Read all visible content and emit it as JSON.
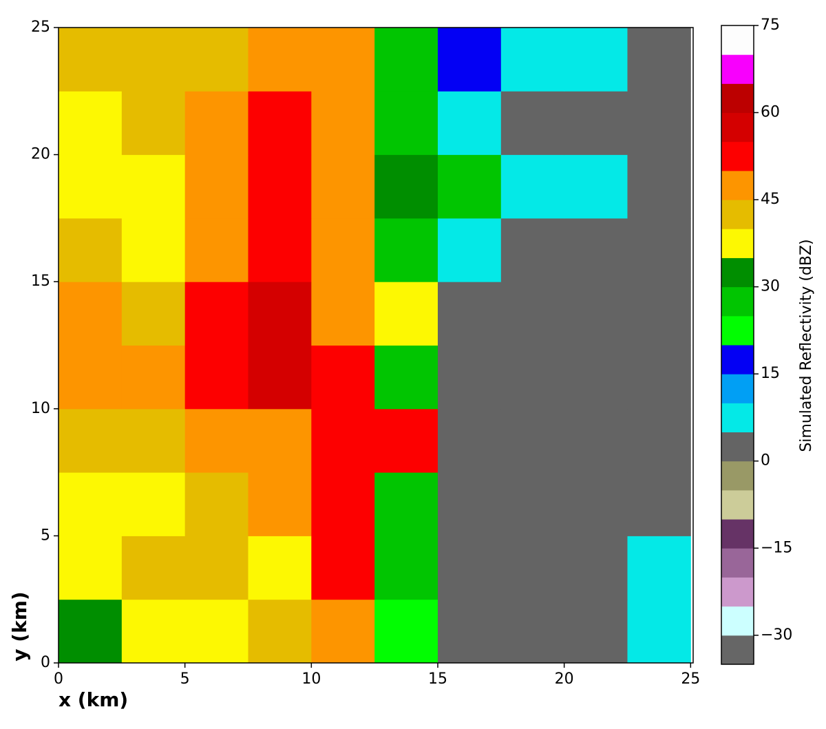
{
  "chart_data": {
    "type": "heatmap",
    "xlabel": "x (km)",
    "ylabel": "y (km)",
    "colorbar_label": "Simulated Reflectivity (dBZ)",
    "xlim": [
      0,
      25.1
    ],
    "ylim": [
      0,
      25
    ],
    "xticks": [
      0,
      5,
      10,
      15,
      20,
      25
    ],
    "yticks": [
      0,
      5,
      10,
      15,
      20,
      25
    ],
    "x_edges": [
      0,
      2.5,
      5,
      7.5,
      10,
      12.5,
      15,
      17.5,
      20,
      22.5,
      25
    ],
    "y_edges": [
      0,
      2.5,
      5,
      7.5,
      10,
      12.5,
      15,
      17.5,
      20,
      22.5,
      25
    ],
    "z": [
      [
        32,
        37,
        37,
        42,
        47,
        22,
        2,
        2,
        2,
        7
      ],
      [
        37,
        42,
        42,
        37,
        52,
        27,
        2,
        2,
        2,
        7
      ],
      [
        37,
        37,
        42,
        47,
        52,
        27,
        2,
        2,
        2,
        2
      ],
      [
        42,
        42,
        47,
        47,
        52,
        52,
        2,
        2,
        2,
        2
      ],
      [
        47,
        47,
        52,
        57,
        52,
        27,
        2,
        2,
        2,
        2
      ],
      [
        47,
        42,
        52,
        57,
        47,
        37,
        2,
        2,
        2,
        2
      ],
      [
        42,
        37,
        47,
        52,
        47,
        27,
        7,
        2,
        2,
        2
      ],
      [
        37,
        37,
        47,
        52,
        47,
        32,
        27,
        7,
        7,
        2
      ],
      [
        37,
        42,
        47,
        52,
        47,
        27,
        7,
        2,
        2,
        2
      ],
      [
        42,
        42,
        42,
        47,
        47,
        27,
        17,
        7,
        7,
        2
      ]
    ],
    "levels": [
      -35,
      -30,
      -25,
      -20,
      -15,
      -10,
      -5,
      0,
      5,
      10,
      15,
      20,
      25,
      30,
      35,
      40,
      45,
      50,
      55,
      60,
      65,
      70,
      75
    ],
    "colors": [
      "#666666",
      "#ccffff",
      "#cc99cc",
      "#996699",
      "#663366",
      "#cccc99",
      "#999966",
      "#646464",
      "#04e9e7",
      "#019ff4",
      "#0300f4",
      "#02fd02",
      "#01c501",
      "#008e00",
      "#fdf802",
      "#e5bc00",
      "#fd9500",
      "#fd0000",
      "#d40000",
      "#bc0000",
      "#f800fd",
      "#fdfdfd"
    ],
    "clim": [
      -35,
      75
    ],
    "cticks": [
      {
        "value": -30,
        "label": "−30"
      },
      {
        "value": -15,
        "label": "−15"
      },
      0,
      15,
      30,
      45,
      60,
      75
    ]
  }
}
